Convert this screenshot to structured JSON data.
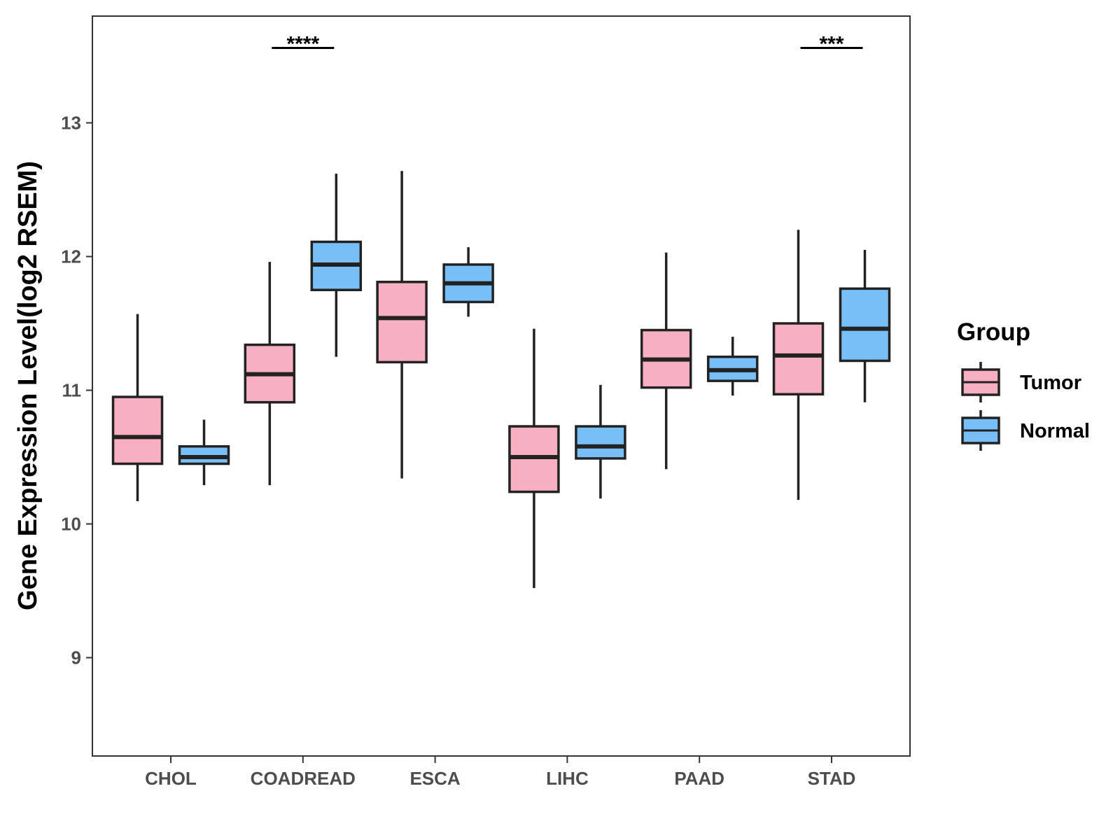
{
  "chart_data": {
    "type": "boxplot",
    "title": "",
    "xlabel": "",
    "ylabel": "Gene Expression Level(log2 RSEM)",
    "ylim": [
      8.4,
      13.85
    ],
    "yticks": [
      9,
      10,
      11,
      12,
      13
    ],
    "ytick_labels": [
      "9",
      "10",
      "11",
      "12",
      "13"
    ],
    "categories": [
      "CHOL",
      "COADREAD",
      "ESCA",
      "LIHC",
      "PAAD",
      "STAD"
    ],
    "legend": {
      "title": "Group",
      "position": "right",
      "entries": [
        {
          "label": "Tumor",
          "color": "#F9AFC2"
        },
        {
          "label": "Normal",
          "color": "#77BFF6"
        }
      ]
    },
    "series": [
      {
        "name": "Tumor",
        "color": "#F9AFC2",
        "boxes": [
          {
            "category": "CHOL",
            "min": 10.17,
            "q1": 10.45,
            "median": 10.65,
            "q3": 10.95,
            "max": 11.57
          },
          {
            "category": "COADREAD",
            "min": 10.29,
            "q1": 10.91,
            "median": 11.12,
            "q3": 11.34,
            "max": 11.96
          },
          {
            "category": "ESCA",
            "min": 10.34,
            "q1": 11.21,
            "median": 11.54,
            "q3": 11.81,
            "max": 12.64
          },
          {
            "category": "LIHC",
            "min": 9.52,
            "q1": 10.24,
            "median": 10.5,
            "q3": 10.73,
            "max": 11.46
          },
          {
            "category": "PAAD",
            "min": 10.41,
            "q1": 11.02,
            "median": 11.23,
            "q3": 11.45,
            "max": 12.03
          },
          {
            "category": "STAD",
            "min": 10.18,
            "q1": 10.97,
            "median": 11.26,
            "q3": 11.5,
            "max": 12.2
          }
        ]
      },
      {
        "name": "Normal",
        "color": "#77BFF6",
        "boxes": [
          {
            "category": "CHOL",
            "min": 10.29,
            "q1": 10.45,
            "median": 10.5,
            "q3": 10.58,
            "max": 10.78
          },
          {
            "category": "COADREAD",
            "min": 11.25,
            "q1": 11.75,
            "median": 11.94,
            "q3": 12.11,
            "max": 12.62
          },
          {
            "category": "ESCA",
            "min": 11.55,
            "q1": 11.66,
            "median": 11.8,
            "q3": 11.94,
            "max": 12.07
          },
          {
            "category": "LIHC",
            "min": 10.19,
            "q1": 10.49,
            "median": 10.58,
            "q3": 10.73,
            "max": 11.04
          },
          {
            "category": "PAAD",
            "min": 10.96,
            "q1": 11.07,
            "median": 11.15,
            "q3": 11.25,
            "max": 11.4
          },
          {
            "category": "STAD",
            "min": 10.91,
            "q1": 11.22,
            "median": 11.46,
            "q3": 11.76,
            "max": 12.05
          }
        ]
      }
    ],
    "annotations": [
      {
        "category": "COADREAD",
        "label": "****",
        "y": 13.56
      },
      {
        "category": "STAD",
        "label": "***",
        "y": 13.56
      }
    ]
  }
}
